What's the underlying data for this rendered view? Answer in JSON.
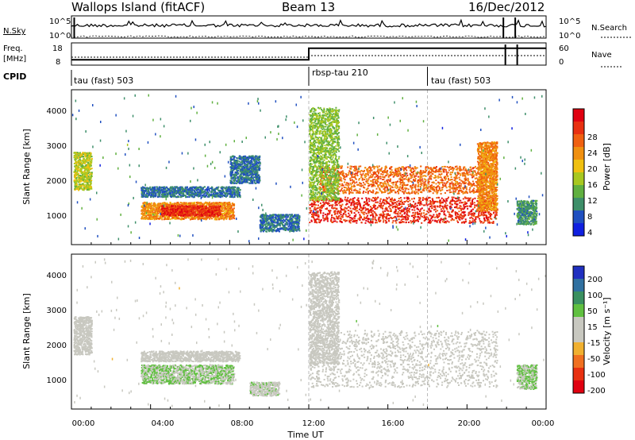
{
  "header": {
    "title": "Wallops Island (fitACF)",
    "beam": "Beam 13",
    "date": "16/Dec/2012"
  },
  "strip": {
    "nsky_label": "N.Sky",
    "nsky_top": "10^5",
    "nsky_bottom": "10^0",
    "nsearch_top": "10^5",
    "nsearch_bottom": "10^0",
    "nsearch_label": "N.Search",
    "freq_label_1": "Freq.",
    "freq_label_2": "[MHz]",
    "freq_top": "18",
    "freq_bottom": "8",
    "nave_top": "60",
    "nave_bottom": "0",
    "nave_label": "Nave",
    "cpid_label": "CPID",
    "cpid_segments": [
      {
        "name": "tau (fast) 503",
        "start_hour": 0
      },
      {
        "name": "rbsp-tau 210",
        "start_hour": 12
      },
      {
        "name": "tau (fast) 503",
        "start_hour": 18
      }
    ]
  },
  "power_panel": {
    "ylabel": "Slant Range [km]",
    "yticks": [
      "1000",
      "2000",
      "3000",
      "4000"
    ],
    "colorbar_label": "Power [dB]",
    "colorbar_ticks": [
      "4",
      "8",
      "12",
      "16",
      "20",
      "24",
      "28"
    ],
    "colorbar_colors": [
      "#1020e0",
      "#2050c0",
      "#3e8f6a",
      "#60b040",
      "#a8c820",
      "#f0c010",
      "#f09010",
      "#f06010",
      "#e83010",
      "#e00010"
    ]
  },
  "velocity_panel": {
    "ylabel": "Slant Range [km]",
    "yticks": [
      "1000",
      "2000",
      "3000",
      "4000"
    ],
    "colorbar_label": "Velocity [m s⁻¹]",
    "colorbar_ticks": [
      "200",
      "100",
      "50",
      "15",
      "-15",
      "-50",
      "-100",
      "-200"
    ],
    "colorbar_colors": [
      "#2030c0",
      "#3070a0",
      "#3a9060",
      "#60c040",
      "#c8c8c0",
      "#c8c8c0",
      "#f0b030",
      "#f07020",
      "#e83010",
      "#e00010"
    ]
  },
  "x_axis": {
    "label": "Time UT",
    "ticks": [
      "00:00",
      "04:00",
      "08:00",
      "12:00",
      "16:00",
      "20:00",
      "00:00"
    ]
  },
  "chart_data": [
    {
      "type": "line",
      "name": "N.Sky / N.Search / Freq / Nave summary",
      "x_unit": "hour UT",
      "freq_mhz": [
        {
          "from": 0,
          "to": 12,
          "value": 10
        },
        {
          "from": 12,
          "to": 24,
          "value": 16
        }
      ],
      "nave_approx": [
        {
          "from": 0,
          "to": 12,
          "value": 20
        },
        {
          "from": 12,
          "to": 24,
          "value": 25
        }
      ]
    },
    {
      "type": "heatmap",
      "quantity": "Power",
      "units": "dB",
      "xlim": [
        0,
        24
      ],
      "ylim": [
        0,
        4500
      ],
      "zlim": [
        0,
        30
      ],
      "regions": [
        {
          "t0": 0.1,
          "t1": 1.0,
          "r0": 1600,
          "r1": 2700,
          "level": 14
        },
        {
          "t0": 3.5,
          "t1": 8.2,
          "r0": 750,
          "r1": 1250,
          "level": 20
        },
        {
          "t0": 4.5,
          "t1": 7.5,
          "r0": 850,
          "r1": 1150,
          "level": 26
        },
        {
          "t0": 3.5,
          "t1": 8.5,
          "r0": 1400,
          "r1": 1700,
          "level": 6
        },
        {
          "t0": 8.0,
          "t1": 9.5,
          "r0": 1800,
          "r1": 2600,
          "level": 6
        },
        {
          "t0": 9.5,
          "t1": 11.5,
          "r0": 400,
          "r1": 900,
          "level": 6
        },
        {
          "t0": 12.0,
          "t1": 21.5,
          "r0": 650,
          "r1": 1400,
          "level": 26
        },
        {
          "t0": 12.5,
          "t1": 21.0,
          "r0": 1500,
          "r1": 2300,
          "level": 22
        },
        {
          "t0": 12.0,
          "t1": 13.5,
          "r0": 1300,
          "r1": 4000,
          "level": 12
        },
        {
          "t0": 20.5,
          "t1": 21.5,
          "r0": 1000,
          "r1": 3000,
          "level": 20
        },
        {
          "t0": 22.5,
          "t1": 23.5,
          "r0": 600,
          "r1": 1300,
          "level": 8
        }
      ]
    },
    {
      "type": "heatmap",
      "quantity": "Velocity",
      "units": "m s-1",
      "xlim": [
        0,
        24
      ],
      "ylim": [
        0,
        4500
      ],
      "zlim": [
        -200,
        200
      ],
      "regions": [
        {
          "t0": 0.1,
          "t1": 1.0,
          "r0": 1600,
          "r1": 2700,
          "value": 0
        },
        {
          "t0": 3.5,
          "t1": 8.2,
          "r0": 750,
          "r1": 1300,
          "value": 40
        },
        {
          "t0": 3.5,
          "t1": 8.5,
          "r0": 1400,
          "r1": 1700,
          "value": 0
        },
        {
          "t0": 9.0,
          "t1": 10.5,
          "r0": 400,
          "r1": 800,
          "value": 30
        },
        {
          "t0": 12.0,
          "t1": 21.5,
          "r0": 650,
          "r1": 2300,
          "value": 0
        },
        {
          "t0": 12.0,
          "t1": 13.5,
          "r0": 1300,
          "r1": 4000,
          "value": 0
        },
        {
          "t0": 22.5,
          "t1": 23.5,
          "r0": 600,
          "r1": 1300,
          "value": 40
        }
      ]
    }
  ]
}
